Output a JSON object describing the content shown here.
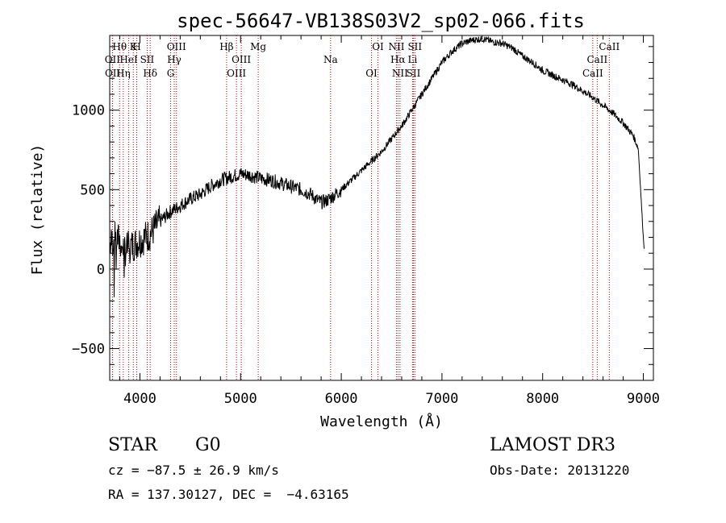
{
  "chart_data": {
    "type": "line",
    "title": "spec-56647-VB138S03V2_sp02-066.fits",
    "xlabel": "Wavelength (Å)",
    "ylabel": "Flux (relative)",
    "xlim": [
      3700,
      9100
    ],
    "ylim": [
      -700,
      1470
    ],
    "x_ticks": [
      4000,
      5000,
      6000,
      7000,
      8000,
      9000
    ],
    "x_tick_labels": [
      "4000",
      "5000",
      "6000",
      "7000",
      "8000",
      "9000"
    ],
    "y_ticks": [
      -500,
      0,
      500,
      1000
    ],
    "y_tick_labels": [
      "−500",
      "0",
      "500",
      "1000"
    ],
    "grid": false,
    "series": [
      {
        "name": "spectrum",
        "color": "#000000",
        "x": [
          3700,
          3750,
          3800,
          3850,
          3900,
          3950,
          4000,
          4050,
          4100,
          4150,
          4200,
          4300,
          4400,
          4500,
          4600,
          4700,
          4800,
          4850,
          4900,
          5000,
          5100,
          5200,
          5300,
          5400,
          5500,
          5600,
          5700,
          5750,
          5800,
          5850,
          5900,
          6000,
          6100,
          6200,
          6300,
          6400,
          6500,
          6560,
          6600,
          6700,
          6800,
          6900,
          7000,
          7100,
          7200,
          7300,
          7400,
          7500,
          7600,
          7700,
          7800,
          7900,
          8000,
          8100,
          8200,
          8300,
          8400,
          8500,
          8600,
          8700,
          8800,
          8850,
          8900,
          8950,
          9000,
          9010
        ],
        "y": [
          150,
          200,
          180,
          120,
          140,
          160,
          180,
          200,
          220,
          260,
          300,
          360,
          400,
          440,
          470,
          520,
          560,
          570,
          580,
          600,
          590,
          570,
          560,
          540,
          520,
          500,
          470,
          440,
          420,
          430,
          450,
          500,
          560,
          620,
          680,
          740,
          820,
          870,
          900,
          1000,
          1100,
          1200,
          1300,
          1370,
          1420,
          1440,
          1450,
          1430,
          1420,
          1390,
          1340,
          1300,
          1250,
          1220,
          1190,
          1160,
          1120,
          1080,
          1030,
          980,
          920,
          880,
          840,
          760,
          200,
          120
        ]
      }
    ],
    "line_markers": [
      {
        "label": "Hθ",
        "wavelength": 3798
      },
      {
        "label": "OII",
        "wavelength": 3727
      },
      {
        "label": "OII",
        "wavelength": 3729
      },
      {
        "label": "K",
        "wavelength": 3934
      },
      {
        "label": "HeI",
        "wavelength": 3889
      },
      {
        "label": "Hη",
        "wavelength": 3835
      },
      {
        "label": "H",
        "wavelength": 3969
      },
      {
        "label": "SII",
        "wavelength": 4072
      },
      {
        "label": "Hδ",
        "wavelength": 4102
      },
      {
        "label": "OIII",
        "wavelength": 4363
      },
      {
        "label": "Hγ",
        "wavelength": 4341
      },
      {
        "label": "G",
        "wavelength": 4305
      },
      {
        "label": "Hβ",
        "wavelength": 4861
      },
      {
        "label": "OIII",
        "wavelength": 5007
      },
      {
        "label": "OIII",
        "wavelength": 4959
      },
      {
        "label": "Mg",
        "wavelength": 5175
      },
      {
        "label": "Na",
        "wavelength": 5894
      },
      {
        "label": "OI",
        "wavelength": 6300
      },
      {
        "label": "OI",
        "wavelength": 6364
      },
      {
        "label": "Hα",
        "wavelength": 6563
      },
      {
        "label": "SII",
        "wavelength": 6717
      },
      {
        "label": "NII",
        "wavelength": 6548
      },
      {
        "label": "Li",
        "wavelength": 6708
      },
      {
        "label": "NII",
        "wavelength": 6583
      },
      {
        "label": "SII",
        "wavelength": 6731
      },
      {
        "label": "CaII",
        "wavelength": 8542
      },
      {
        "label": "CaII",
        "wavelength": 8498
      },
      {
        "label": "CaII",
        "wavelength": 8662
      }
    ]
  },
  "info": {
    "class_label": "STAR",
    "subclass": "G0",
    "survey": "LAMOST DR3",
    "redshift": "cz = −87.5 ± 26.9 km/s",
    "obs_date": "Obs-Date: 20131220",
    "coords": "RA = 137.30127, DEC =  −4.63165"
  },
  "colors": {
    "spectrum": "#000000",
    "marker_line": "#b00000",
    "axis": "#000000"
  }
}
